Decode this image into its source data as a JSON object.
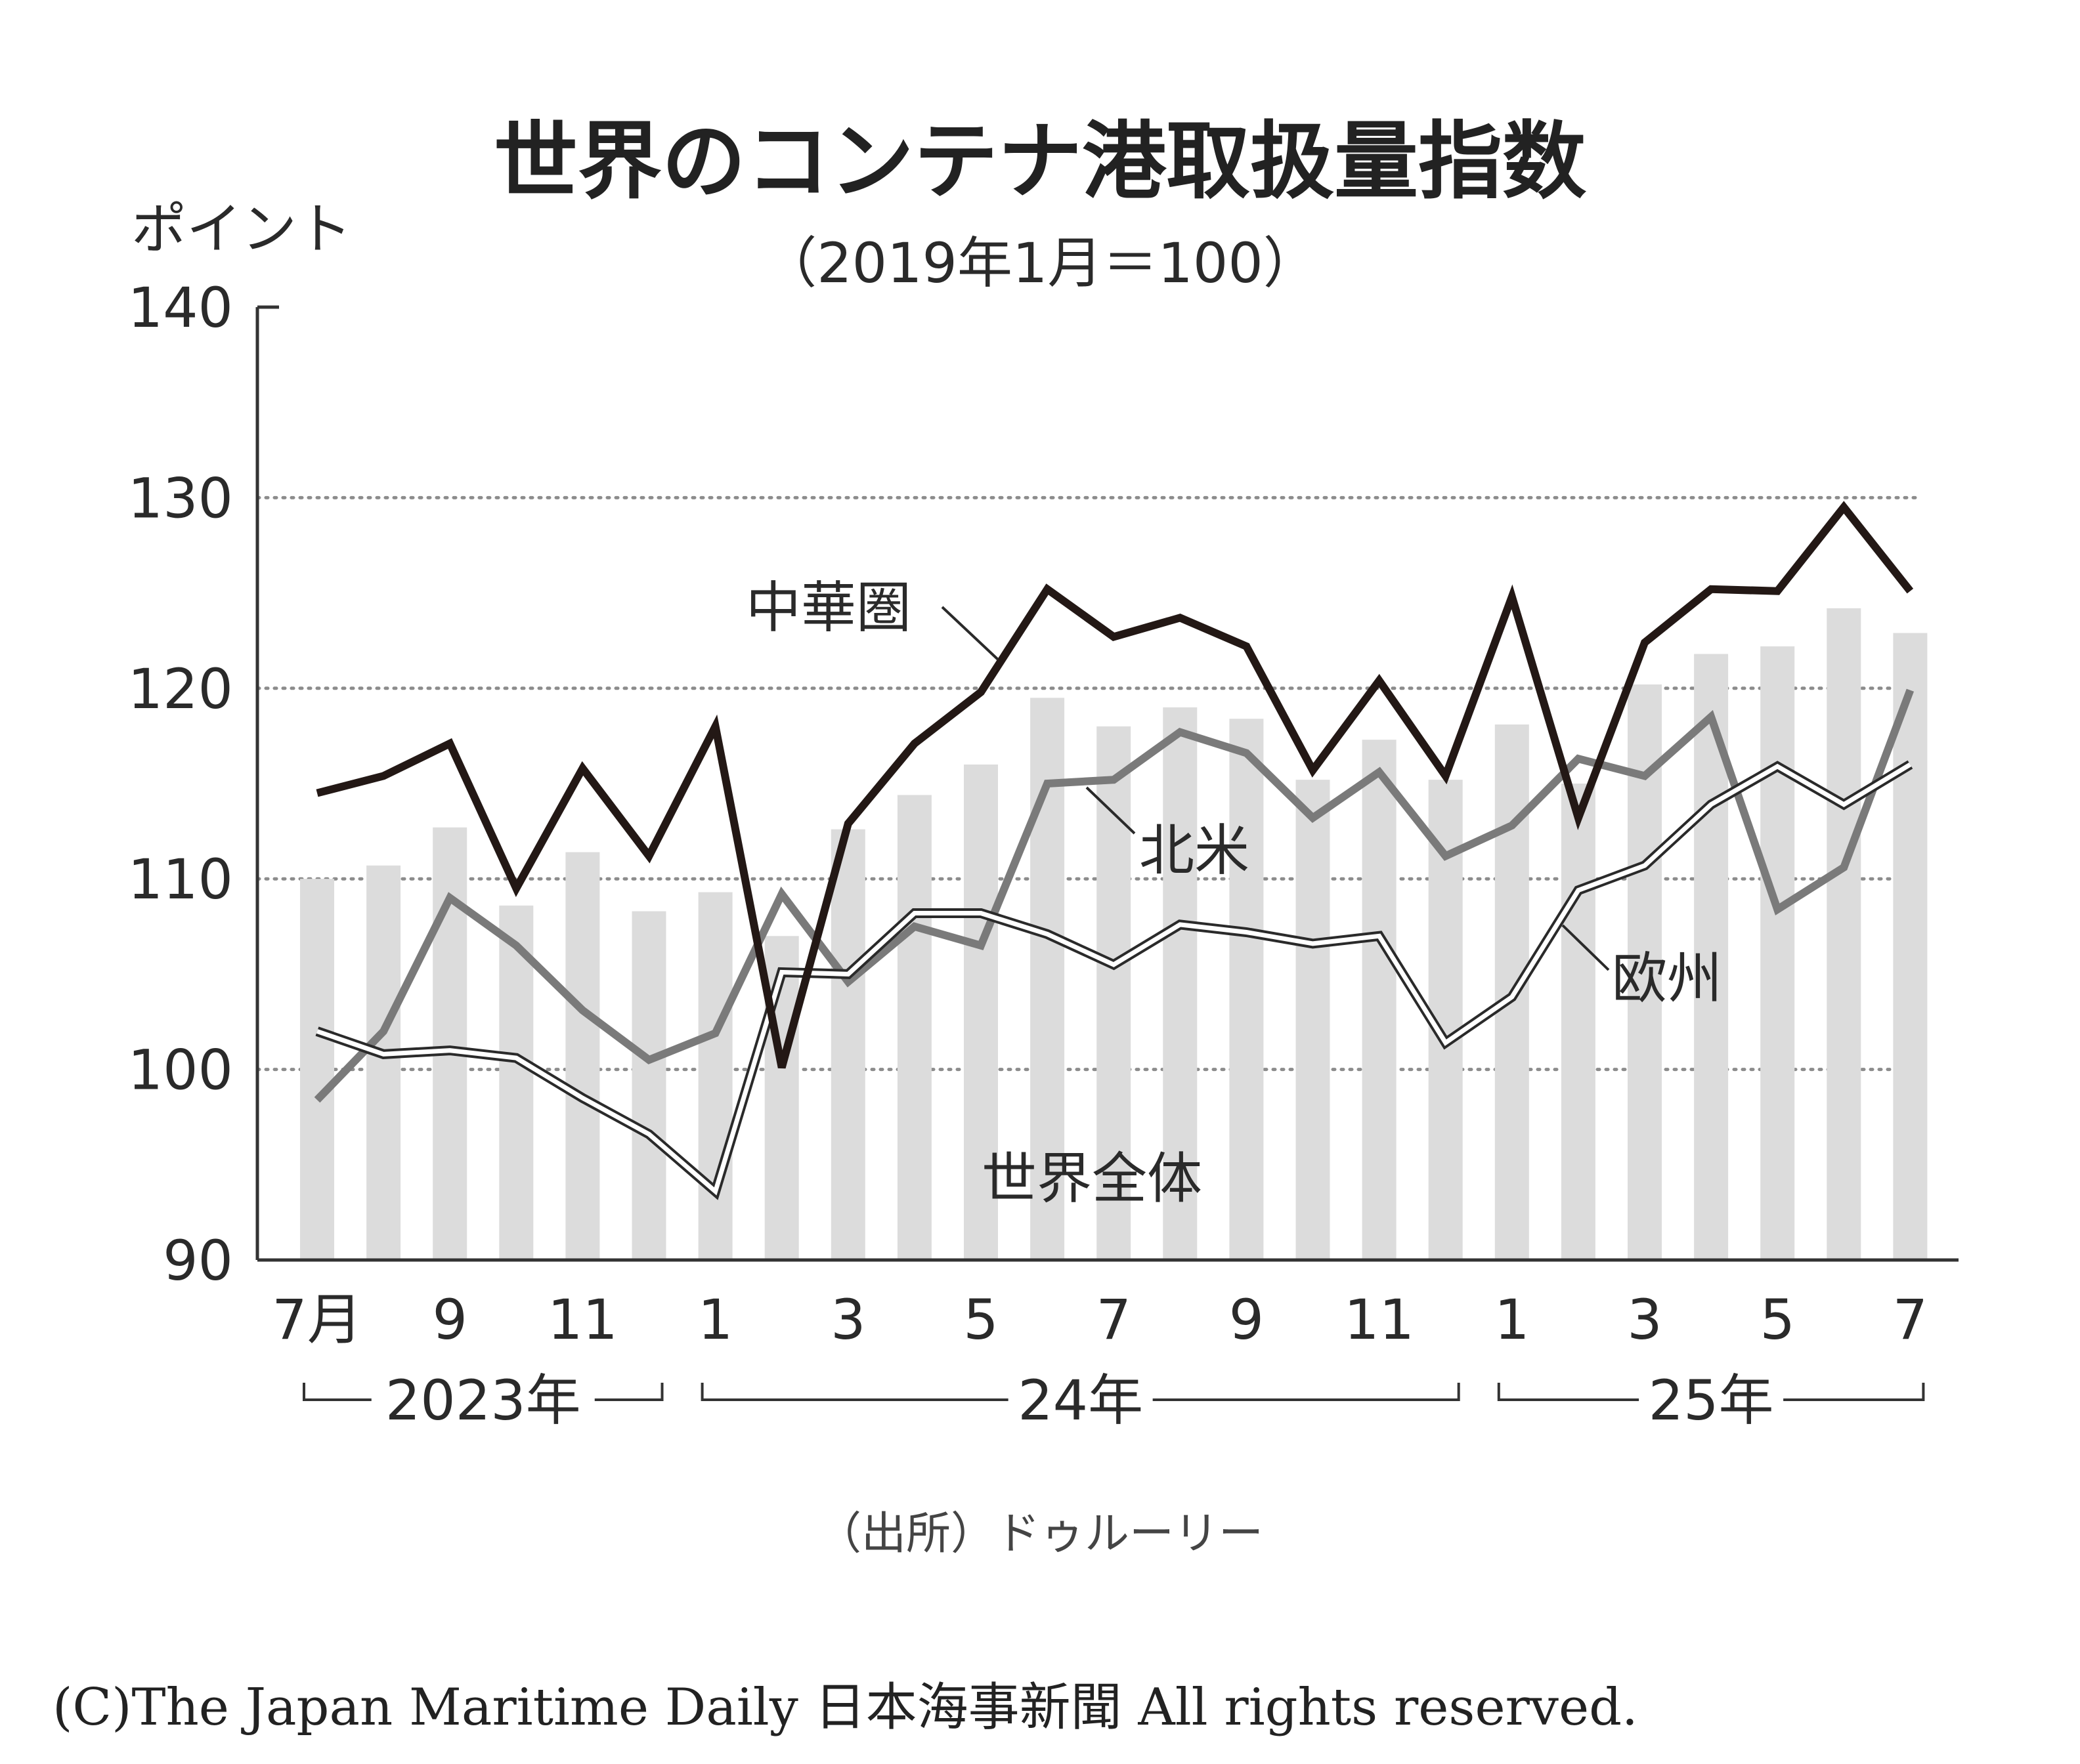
{
  "chart_data": {
    "type": "bar",
    "title": "世界のコンテナ港取扱量指数",
    "subtitle": "（2019年1月＝100）",
    "ylabel": "ポイント",
    "ylim": [
      90,
      140
    ],
    "yticks": [
      90,
      100,
      110,
      120,
      130,
      140
    ],
    "grid": true,
    "months": [
      "2023-07",
      "2023-08",
      "2023-09",
      "2023-10",
      "2023-11",
      "2023-12",
      "2024-01",
      "2024-02",
      "2024-03",
      "2024-04",
      "2024-05",
      "2024-06",
      "2024-07",
      "2024-08",
      "2024-09",
      "2024-10",
      "2024-11",
      "2024-12",
      "2025-01",
      "2025-02",
      "2025-03",
      "2025-04",
      "2025-05",
      "2025-06",
      "2025-07"
    ],
    "xtick_labels": [
      "7月",
      "",
      "9",
      "",
      "11",
      "",
      "1",
      "",
      "3",
      "",
      "5",
      "",
      "7",
      "",
      "9",
      "",
      "11",
      "",
      "1",
      "",
      "3",
      "",
      "5",
      "",
      "7"
    ],
    "year_labels": [
      {
        "text": "2023年",
        "from": 0,
        "to": 5
      },
      {
        "text": "24年",
        "from": 6,
        "to": 17
      },
      {
        "text": "25年",
        "from": 18,
        "to": 24
      }
    ],
    "series": [
      {
        "name": "世界全体",
        "type": "bar",
        "color": "#dcdcdc",
        "values": [
          110.0,
          110.7,
          112.7,
          108.6,
          111.4,
          108.3,
          109.3,
          107.0,
          112.6,
          114.4,
          116.0,
          119.5,
          118.0,
          119.0,
          118.4,
          115.2,
          117.3,
          115.2,
          118.1,
          115.0,
          120.2,
          121.8,
          122.2,
          124.2,
          122.9
        ]
      },
      {
        "name": "中華圏",
        "type": "line",
        "color": "#231815",
        "values": [
          114.5,
          115.4,
          117.1,
          109.5,
          115.8,
          111.2,
          118.0,
          100.1,
          112.9,
          117.1,
          119.8,
          125.2,
          122.7,
          123.7,
          122.2,
          115.7,
          120.4,
          115.4,
          124.8,
          113.2,
          122.4,
          125.2,
          125.1,
          129.5,
          125.1
        ]
      },
      {
        "name": "北米",
        "type": "line",
        "color": "#7a7a7a",
        "values": [
          98.4,
          102.0,
          109.0,
          106.5,
          103.1,
          100.5,
          101.9,
          109.2,
          104.6,
          107.5,
          106.5,
          115.0,
          115.2,
          117.7,
          116.6,
          113.2,
          115.6,
          111.2,
          112.8,
          116.3,
          115.4,
          118.5,
          108.4,
          110.6,
          119.9
        ]
      },
      {
        "name": "欧州",
        "type": "line",
        "color": "#ffffff",
        "outline": "#2a2a2a",
        "values": [
          102.0,
          100.8,
          101.0,
          100.6,
          98.5,
          96.6,
          93.6,
          105.1,
          105.0,
          108.2,
          108.2,
          107.1,
          105.5,
          107.6,
          107.2,
          106.6,
          107.0,
          101.4,
          103.8,
          109.4,
          110.7,
          113.9,
          115.9,
          113.9,
          116.0
        ]
      }
    ],
    "series_labels": [
      "中華圏",
      "北米",
      "欧州",
      "世界全体"
    ]
  },
  "source": "（出所）ドゥルーリー",
  "copyright": "(C)The Japan Maritime Daily 日本海事新聞 All rights reserved."
}
